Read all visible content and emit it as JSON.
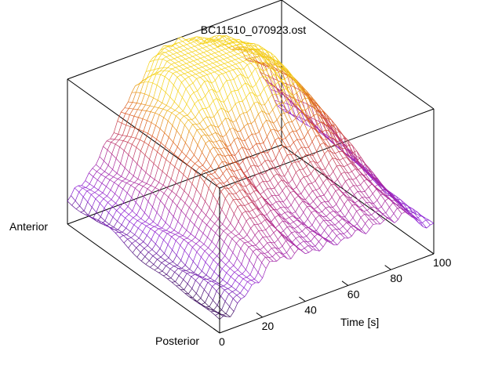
{
  "chart_data": {
    "type": "surface-3d-mesh",
    "title": "BC11510_070923.ost",
    "xlabel": "Time [s]",
    "ylabel_top": "Anterior",
    "ylabel_bottom": "Posterior",
    "zlabel": "",
    "xlim": [
      0,
      100
    ],
    "x_ticks": [
      0,
      20,
      40,
      60,
      80,
      100
    ],
    "x_tick_labels": [
      "0",
      "20",
      "40",
      "60",
      "80",
      "100"
    ],
    "colormap": [
      "#000000",
      "#8b1fd9",
      "#b12a8a",
      "#d9531e",
      "#f5d21a"
    ],
    "grid": false,
    "legend": "none",
    "surface": {
      "description_free": true,
      "n_time": 61,
      "n_position": 36,
      "features": [
        {
          "x_center": 42,
          "pos_center": 0.15,
          "x_width": 12,
          "pos_width": 0.2,
          "amp": 0.55
        },
        {
          "x_center": 58,
          "pos_center": 0.2,
          "x_width": 14,
          "pos_width": 0.25,
          "amp": 0.6
        },
        {
          "x_center": 78,
          "pos_center": 0.3,
          "x_width": 12,
          "pos_width": 0.3,
          "amp": 0.45
        },
        {
          "x_center": 30,
          "pos_center": 0.5,
          "x_width": 8,
          "pos_width": 0.25,
          "amp": 0.35
        }
      ]
    }
  }
}
